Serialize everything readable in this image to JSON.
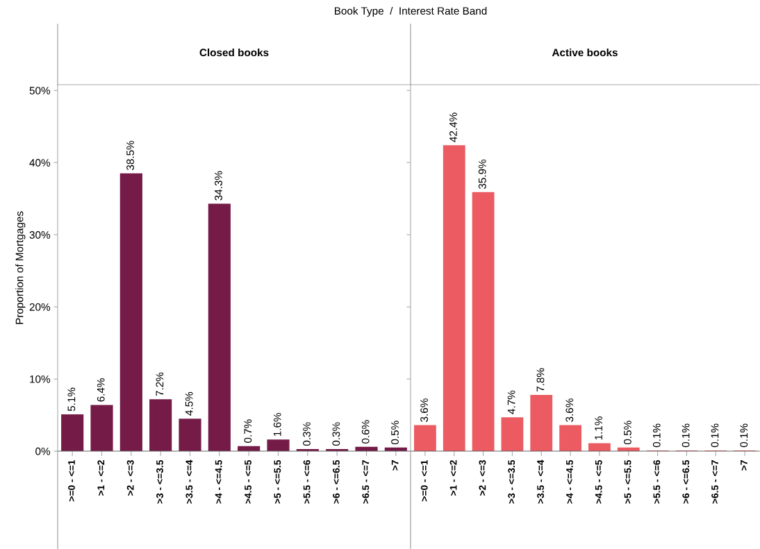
{
  "chart_data": [
    {
      "type": "bar",
      "title": "Closed books",
      "ylabel": "Proportion of Mortgages",
      "annotations": [
        "Book Type  /  Interest Rate Band"
      ],
      "categories": [
        ">=0 - <=1",
        ">1 - <=2",
        ">2 - <=3",
        ">3 - <=3.5",
        ">3.5 - <=4",
        ">4 - <=4.5",
        ">4.5 - <=5",
        ">5 - <=5.5",
        ">5.5 - <=6",
        ">6 - <=6.5",
        ">6.5 - <=7",
        ">7"
      ],
      "values": [
        5.1,
        6.4,
        38.5,
        7.2,
        4.5,
        34.3,
        0.7,
        1.6,
        0.3,
        0.3,
        0.6,
        0.5
      ],
      "value_labels": [
        "5.1%",
        "6.4%",
        "38.5%",
        "7.2%",
        "4.5%",
        "34.3%",
        "0.7%",
        "1.6%",
        "0.3%",
        "0.3%",
        "0.6%",
        "0.5%"
      ],
      "color": "#741b47",
      "ylim": [
        0,
        50.8
      ],
      "yticks": [
        {
          "value": 0,
          "label": "0%"
        },
        {
          "value": 10,
          "label": "10%"
        },
        {
          "value": 20,
          "label": "20%"
        },
        {
          "value": 30,
          "label": "30%"
        },
        {
          "value": 40,
          "label": "40%"
        },
        {
          "value": 50,
          "label": "50%"
        }
      ],
      "grid": false,
      "legend": false
    },
    {
      "type": "bar",
      "title": "Active books",
      "categories": [
        ">=0 - <=1",
        ">1 - <=2",
        ">2 - <=3",
        ">3 - <=3.5",
        ">3.5 - <=4",
        ">4 - <=4.5",
        ">4.5 - <=5",
        ">5 - <=5.5",
        ">5.5 - <=6",
        ">6 - <=6.5",
        ">6.5 - <=7",
        ">7"
      ],
      "values": [
        3.6,
        42.4,
        35.9,
        4.7,
        7.8,
        3.6,
        1.1,
        0.5,
        0.1,
        0.1,
        0.1,
        0.1
      ],
      "value_labels": [
        "3.6%",
        "42.4%",
        "35.9%",
        "4.7%",
        "7.8%",
        "3.6%",
        "1.1%",
        "0.5%",
        "0.1%",
        "0.1%",
        "0.1%",
        "0.1%"
      ],
      "color": "#eb5b61",
      "ylim": [
        0,
        50.8
      ],
      "yticks": [
        {
          "value": 0,
          "label": null
        },
        {
          "value": 10,
          "label": null
        },
        {
          "value": 20,
          "label": null
        },
        {
          "value": 30,
          "label": null
        },
        {
          "value": 40,
          "label": null
        },
        {
          "value": 50,
          "label": null
        }
      ],
      "tick_labels": "x",
      "grid": false,
      "legend": false
    }
  ]
}
